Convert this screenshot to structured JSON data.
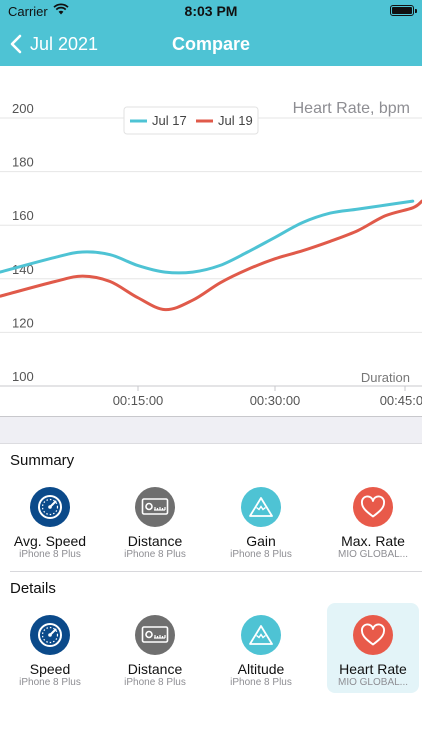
{
  "status": {
    "carrier": "Carrier",
    "time": "8:03 PM"
  },
  "nav": {
    "back_label": "Jul 2021",
    "title": "Compare"
  },
  "chart_data": {
    "type": "line",
    "title": "Heart Rate, bpm",
    "xlabel": "Duration",
    "ylabel": "",
    "ylim": [
      100,
      200
    ],
    "yticks": [
      100,
      120,
      140,
      160,
      180,
      200
    ],
    "xticks": [
      "00:15:00",
      "00:30:00",
      "00:45:00"
    ],
    "xlim": [
      0,
      2760
    ],
    "legend_position": "top-center",
    "grid": true,
    "series": [
      {
        "name": "Jul 17",
        "color": "#4ec3d4",
        "x": [
          0,
          360,
          540,
          720,
          900,
          1080,
          1260,
          1440,
          1620,
          1800,
          1980,
          2160,
          2340,
          2520,
          2700
        ],
        "values": [
          142.5,
          148,
          150,
          149,
          145,
          142.5,
          142.5,
          145,
          150,
          155.5,
          161,
          164.5,
          166,
          167.5,
          169
        ]
      },
      {
        "name": "Jul 19",
        "color": "#e05a4a",
        "x": [
          0,
          360,
          540,
          720,
          900,
          1080,
          1260,
          1440,
          1620,
          1800,
          1980,
          2160,
          2340,
          2520,
          2700,
          2760
        ],
        "values": [
          133.5,
          139,
          141,
          139,
          133,
          128.5,
          132,
          138.5,
          143.5,
          147.5,
          150.5,
          154,
          158,
          163.5,
          166.5,
          169
        ]
      }
    ]
  },
  "summary": {
    "title": "Summary",
    "tiles": [
      {
        "label": "Avg. Speed",
        "sub": "iPhone 8 Plus",
        "icon": "speedometer-icon",
        "color": "#0b4a8a"
      },
      {
        "label": "Distance",
        "sub": "iPhone 8 Plus",
        "icon": "distance-icon",
        "color": "#6f6f6f"
      },
      {
        "label": "Gain",
        "sub": "iPhone 8 Plus",
        "icon": "mountain-icon",
        "color": "#4ec3d4"
      },
      {
        "label": "Max. Rate",
        "sub": "MIO GLOBAL...",
        "icon": "heart-icon",
        "color": "#e85a4a"
      }
    ]
  },
  "details": {
    "title": "Details",
    "selected_index": 3,
    "tiles": [
      {
        "label": "Speed",
        "sub": "iPhone 8 Plus",
        "icon": "speedometer-icon",
        "color": "#0b4a8a"
      },
      {
        "label": "Distance",
        "sub": "iPhone 8 Plus",
        "icon": "distance-icon",
        "color": "#6f6f6f"
      },
      {
        "label": "Altitude",
        "sub": "iPhone 8 Plus",
        "icon": "mountain-icon",
        "color": "#4ec3d4"
      },
      {
        "label": "Heart Rate",
        "sub": "MIO GLOBAL...",
        "icon": "heart-icon",
        "color": "#e85a4a"
      }
    ]
  }
}
